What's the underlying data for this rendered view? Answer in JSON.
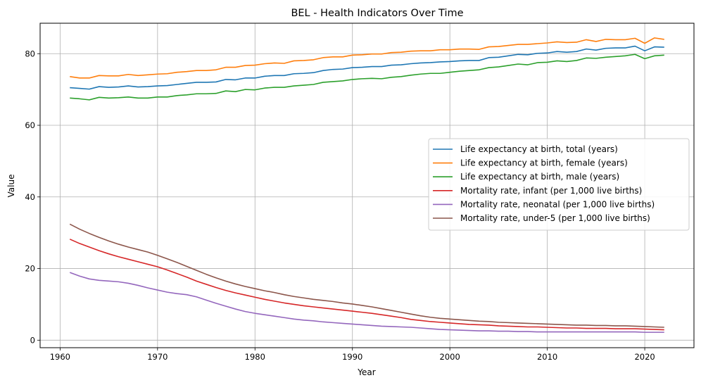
{
  "chart_data": {
    "type": "line",
    "title": "BEL - Health Indicators Over Time",
    "xlabel": "Year",
    "ylabel": "Value",
    "xlim": [
      1957.95,
      2025.05
    ],
    "ylim": [
      -2.1,
      88.5
    ],
    "xticks": [
      1960,
      1970,
      1980,
      1990,
      2000,
      2010,
      2020
    ],
    "yticks": [
      0,
      20,
      40,
      60,
      80
    ],
    "grid": true,
    "legend_position": "center-right",
    "x": [
      1961,
      1962,
      1963,
      1964,
      1965,
      1966,
      1967,
      1968,
      1969,
      1970,
      1971,
      1972,
      1973,
      1974,
      1975,
      1976,
      1977,
      1978,
      1979,
      1980,
      1981,
      1982,
      1983,
      1984,
      1985,
      1986,
      1987,
      1988,
      1989,
      1990,
      1991,
      1992,
      1993,
      1994,
      1995,
      1996,
      1997,
      1998,
      1999,
      2000,
      2001,
      2002,
      2003,
      2004,
      2005,
      2006,
      2007,
      2008,
      2009,
      2010,
      2011,
      2012,
      2013,
      2014,
      2015,
      2016,
      2017,
      2018,
      2019,
      2020,
      2021,
      2022
    ],
    "series": [
      {
        "name": "Life expectancy at birth, total (years)",
        "color": "#1f77b4",
        "values": [
          70.5,
          70.3,
          70.1,
          70.8,
          70.6,
          70.7,
          71.0,
          70.7,
          70.8,
          71.0,
          71.1,
          71.4,
          71.7,
          72.0,
          72.0,
          72.1,
          72.8,
          72.7,
          73.2,
          73.2,
          73.7,
          73.9,
          73.9,
          74.4,
          74.5,
          74.7,
          75.3,
          75.6,
          75.7,
          76.1,
          76.2,
          76.4,
          76.4,
          76.8,
          76.9,
          77.2,
          77.4,
          77.5,
          77.7,
          77.8,
          78.0,
          78.1,
          78.1,
          78.9,
          79.0,
          79.4,
          79.8,
          79.7,
          80.1,
          80.2,
          80.6,
          80.4,
          80.6,
          81.3,
          81.0,
          81.5,
          81.6,
          81.6,
          82.1,
          80.8,
          81.9,
          81.8
        ]
      },
      {
        "name": "Life expectancy at birth, female (years)",
        "color": "#ff7f0e",
        "values": [
          73.6,
          73.2,
          73.2,
          73.9,
          73.8,
          73.8,
          74.2,
          73.9,
          74.1,
          74.3,
          74.4,
          74.8,
          75.0,
          75.3,
          75.3,
          75.5,
          76.2,
          76.2,
          76.7,
          76.8,
          77.2,
          77.4,
          77.3,
          78.0,
          78.1,
          78.3,
          78.9,
          79.1,
          79.1,
          79.6,
          79.7,
          79.9,
          79.9,
          80.3,
          80.4,
          80.7,
          80.8,
          80.8,
          81.1,
          81.1,
          81.3,
          81.3,
          81.2,
          81.9,
          82.0,
          82.3,
          82.6,
          82.6,
          82.8,
          83.0,
          83.3,
          83.1,
          83.2,
          83.9,
          83.4,
          84.0,
          83.9,
          83.9,
          84.3,
          82.9,
          84.4,
          84.0
        ]
      },
      {
        "name": "Life expectancy at birth, male (years)",
        "color": "#2ca02c",
        "values": [
          67.6,
          67.4,
          67.1,
          67.8,
          67.6,
          67.7,
          67.9,
          67.6,
          67.6,
          67.9,
          67.9,
          68.3,
          68.5,
          68.8,
          68.8,
          68.9,
          69.6,
          69.4,
          70.0,
          69.9,
          70.4,
          70.6,
          70.6,
          71.0,
          71.2,
          71.4,
          72.0,
          72.2,
          72.4,
          72.8,
          73.0,
          73.1,
          73.0,
          73.4,
          73.6,
          74.0,
          74.3,
          74.5,
          74.5,
          74.8,
          75.1,
          75.3,
          75.5,
          76.1,
          76.3,
          76.7,
          77.1,
          76.9,
          77.5,
          77.6,
          78.0,
          77.8,
          78.1,
          78.8,
          78.7,
          79.0,
          79.2,
          79.4,
          79.8,
          78.6,
          79.4,
          79.6
        ]
      },
      {
        "name": "Mortality rate, infant (per 1,000 live births)",
        "color": "#d62728",
        "values": [
          28.2,
          27.0,
          26.0,
          25.0,
          24.1,
          23.3,
          22.6,
          21.9,
          21.2,
          20.5,
          19.6,
          18.6,
          17.6,
          16.5,
          15.6,
          14.7,
          13.9,
          13.2,
          12.6,
          12.0,
          11.4,
          10.9,
          10.4,
          10.0,
          9.6,
          9.3,
          9.0,
          8.7,
          8.4,
          8.1,
          7.8,
          7.5,
          7.1,
          6.7,
          6.3,
          5.8,
          5.5,
          5.2,
          5.0,
          4.8,
          4.6,
          4.4,
          4.3,
          4.2,
          4.0,
          3.9,
          3.8,
          3.7,
          3.7,
          3.6,
          3.5,
          3.4,
          3.4,
          3.3,
          3.3,
          3.3,
          3.2,
          3.2,
          3.2,
          3.1,
          3.0,
          2.9
        ]
      },
      {
        "name": "Mortality rate, neonatal (per 1,000 live births)",
        "color": "#9467bd",
        "values": [
          18.9,
          17.9,
          17.1,
          16.7,
          16.5,
          16.3,
          15.9,
          15.3,
          14.6,
          14.0,
          13.4,
          13.0,
          12.7,
          12.1,
          11.2,
          10.3,
          9.5,
          8.7,
          8.0,
          7.5,
          7.1,
          6.7,
          6.3,
          5.9,
          5.6,
          5.4,
          5.1,
          4.9,
          4.7,
          4.5,
          4.3,
          4.1,
          3.9,
          3.8,
          3.7,
          3.6,
          3.4,
          3.2,
          3.0,
          2.9,
          2.8,
          2.7,
          2.6,
          2.6,
          2.5,
          2.5,
          2.4,
          2.4,
          2.3,
          2.3,
          2.3,
          2.3,
          2.3,
          2.3,
          2.3,
          2.3,
          2.3,
          2.3,
          2.3,
          2.2,
          2.2,
          2.2
        ]
      },
      {
        "name": "Mortality rate, under-5 (per 1,000 live births)",
        "color": "#8c564b",
        "values": [
          32.4,
          31.0,
          29.8,
          28.7,
          27.7,
          26.8,
          26.0,
          25.3,
          24.6,
          23.7,
          22.7,
          21.7,
          20.6,
          19.5,
          18.4,
          17.4,
          16.5,
          15.7,
          15.0,
          14.4,
          13.8,
          13.3,
          12.7,
          12.2,
          11.8,
          11.4,
          11.1,
          10.8,
          10.4,
          10.1,
          9.7,
          9.3,
          8.8,
          8.3,
          7.8,
          7.3,
          6.8,
          6.4,
          6.1,
          5.9,
          5.7,
          5.5,
          5.3,
          5.2,
          5.0,
          4.9,
          4.8,
          4.7,
          4.6,
          4.5,
          4.4,
          4.3,
          4.2,
          4.2,
          4.1,
          4.1,
          4.0,
          4.0,
          3.9,
          3.8,
          3.7,
          3.6
        ]
      }
    ]
  }
}
